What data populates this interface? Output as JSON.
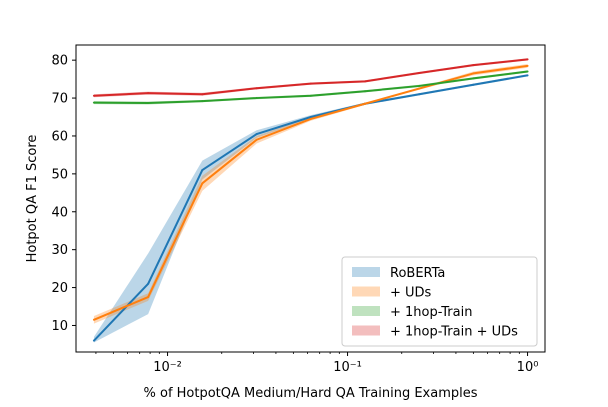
{
  "chart_data": {
    "type": "line",
    "xscale": "log",
    "xlabel": "% of HotpotQA Medium/Hard QA Training Examples",
    "ylabel": "Hotpot QA F1 Score",
    "xlim": [
      0.0031,
      1.25
    ],
    "ylim": [
      3.0,
      84.0
    ],
    "x_ticks": [
      0.01,
      0.1,
      1.0
    ],
    "x_tick_labels": [
      "10⁻²",
      "10⁻¹",
      "10⁰"
    ],
    "y_ticks": [
      10,
      20,
      30,
      40,
      50,
      60,
      70,
      80
    ],
    "grid": false,
    "legend_position": "lower-right",
    "series": [
      {
        "name": "RoBERTa",
        "color": "#1f77b4",
        "x": [
          0.0039,
          0.0078,
          0.0156,
          0.03125,
          0.0625,
          0.125,
          0.25,
          0.5,
          1.0
        ],
        "y": [
          6.0,
          21.0,
          51.0,
          60.5,
          65.0,
          68.5,
          71.0,
          73.5,
          76.0
        ],
        "band_low": [
          5.5,
          13.0,
          48.5,
          59.5,
          64.5,
          68.2,
          70.7,
          73.2,
          75.7
        ],
        "band_high": [
          7.0,
          29.0,
          53.5,
          61.5,
          65.5,
          68.8,
          71.3,
          73.8,
          76.3
        ]
      },
      {
        "name": "+ UDs",
        "color": "#ff7f0e",
        "x": [
          0.0039,
          0.0078,
          0.0156,
          0.03125,
          0.0625,
          0.125,
          0.25,
          0.5,
          1.0
        ],
        "y": [
          11.5,
          17.5,
          47.5,
          59.0,
          64.5,
          68.5,
          72.5,
          76.5,
          78.5
        ],
        "band_low": [
          10.5,
          16.5,
          45.5,
          58.0,
          64.0,
          68.2,
          72.2,
          76.0,
          78.0
        ],
        "band_high": [
          12.5,
          18.5,
          49.5,
          60.0,
          65.0,
          68.8,
          72.8,
          77.0,
          79.0
        ]
      },
      {
        "name": "+ 1hop-Train",
        "color": "#2ca02c",
        "x": [
          0.0039,
          0.0078,
          0.0156,
          0.03125,
          0.0625,
          0.125,
          0.25,
          0.5,
          1.0
        ],
        "y": [
          68.8,
          68.7,
          69.2,
          70.0,
          70.6,
          71.8,
          73.2,
          75.2,
          77.0
        ],
        "band_low": [
          68.4,
          68.3,
          68.9,
          69.7,
          70.3,
          71.5,
          72.9,
          74.9,
          76.7
        ],
        "band_high": [
          69.2,
          69.1,
          69.5,
          70.3,
          70.9,
          72.1,
          73.5,
          75.5,
          77.3
        ]
      },
      {
        "name": "+ 1hop-Train + UDs",
        "color": "#d62728",
        "x": [
          0.0039,
          0.0078,
          0.0156,
          0.03125,
          0.0625,
          0.125,
          0.25,
          0.5,
          1.0
        ],
        "y": [
          70.6,
          71.3,
          71.0,
          72.6,
          73.8,
          74.4,
          76.6,
          78.7,
          80.2
        ],
        "band_low": [
          70.2,
          70.9,
          70.6,
          72.3,
          73.5,
          74.1,
          76.3,
          78.4,
          79.9
        ],
        "band_high": [
          71.0,
          71.7,
          71.4,
          72.9,
          74.1,
          74.7,
          76.9,
          79.0,
          80.5
        ]
      }
    ]
  }
}
